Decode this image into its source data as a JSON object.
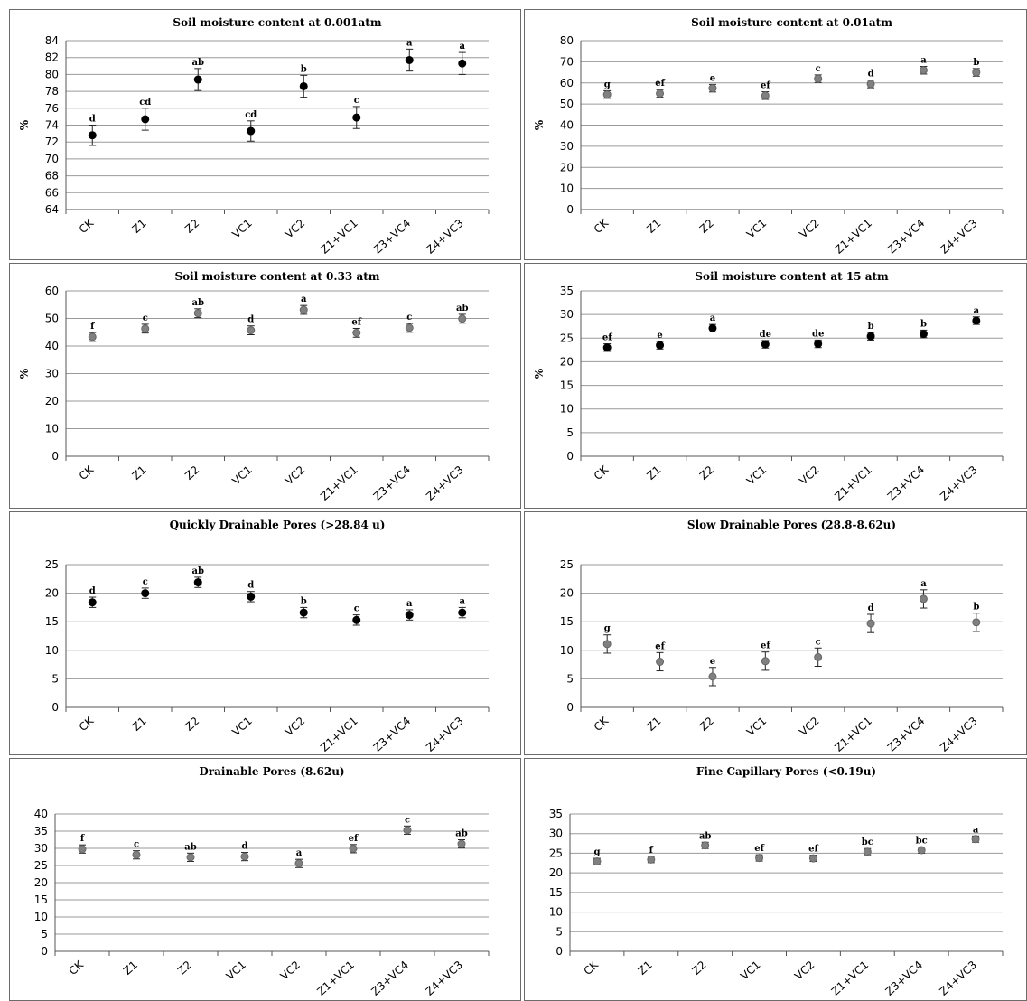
{
  "chart_data": [
    {
      "type": "scatter",
      "title": "Soil moisture content at 0.001atm",
      "ylabel": "%",
      "categories": [
        "CK",
        "Z1",
        "Z2",
        "VC1",
        "VC2",
        "Z1+VC1",
        "Z3+VC4",
        "Z4+VC3"
      ],
      "values": [
        72.8,
        74.7,
        79.4,
        73.3,
        78.6,
        74.9,
        81.7,
        81.3
      ],
      "errors": [
        1.2,
        1.3,
        1.3,
        1.2,
        1.3,
        1.3,
        1.3,
        1.3
      ],
      "letters": [
        "d",
        "cd",
        "ab",
        "cd",
        "b",
        "c",
        "a",
        "a"
      ],
      "ylim": [
        64,
        84
      ],
      "ystep": 2,
      "grid": true,
      "marker_color": "#000000"
    },
    {
      "type": "scatter",
      "title": "Soil moisture content at 0.01atm",
      "ylabel": "%",
      "categories": [
        "CK",
        "Z1",
        "Z2",
        "VC1",
        "VC2",
        "Z1+VC1",
        "Z3+VC4",
        "Z4+VC3"
      ],
      "values": [
        54.5,
        55,
        57.5,
        54,
        62,
        59.5,
        66,
        65
      ],
      "errors": [
        1.8,
        1.8,
        1.8,
        1.8,
        1.8,
        1.8,
        1.8,
        1.8
      ],
      "letters": [
        "g",
        "ef",
        "e",
        "ef",
        "c",
        "d",
        "a",
        "b"
      ],
      "ylim": [
        0,
        80
      ],
      "ystep": 10,
      "grid": true,
      "marker_color": "#808080"
    },
    {
      "type": "scatter",
      "title": "Soil moisture content at 0.33 atm",
      "ylabel": "%",
      "categories": [
        "CK",
        "Z1",
        "Z2",
        "VC1",
        "VC2",
        "Z1+VC1",
        "Z3+VC4",
        "Z4+VC3"
      ],
      "values": [
        43.3,
        46.3,
        51.9,
        45.7,
        53.1,
        44.8,
        46.6,
        49.9
      ],
      "errors": [
        1.6,
        1.6,
        1.6,
        1.6,
        1.6,
        1.6,
        1.6,
        1.6
      ],
      "letters": [
        "f",
        "c",
        "ab",
        "d",
        "a",
        "ef",
        "c",
        "ab"
      ],
      "ylim": [
        0,
        60
      ],
      "ystep": 10,
      "grid": true,
      "marker_color": "#808080"
    },
    {
      "type": "scatter",
      "title": "Soil moisture content at 15 atm",
      "ylabel": "%",
      "categories": [
        "CK",
        "Z1",
        "Z2",
        "VC1",
        "VC2",
        "Z1+VC1",
        "Z3+VC4",
        "Z4+VC3"
      ],
      "values": [
        23,
        23.5,
        27.1,
        23.7,
        23.8,
        25.4,
        25.9,
        28.7
      ],
      "errors": [
        0.8,
        0.8,
        0.8,
        0.8,
        0.8,
        0.8,
        0.8,
        0.8
      ],
      "letters": [
        "ef",
        "e",
        "a",
        "de",
        "de",
        "b",
        "b",
        "a"
      ],
      "ylim": [
        0,
        35
      ],
      "ystep": 5,
      "grid": true,
      "marker_color": "#000000"
    },
    {
      "type": "scatter",
      "title": "Quickly Drainable Pores (>28.84 u)",
      "ylabel": "",
      "categories": [
        "CK",
        "Z1",
        "Z2",
        "VC1",
        "VC2",
        "Z1+VC1",
        "Z3+VC4",
        "Z4+VC3"
      ],
      "values": [
        18.4,
        20,
        21.9,
        19.4,
        16.6,
        15.3,
        16.2,
        16.6
      ],
      "errors": [
        0.9,
        0.9,
        0.9,
        0.9,
        0.9,
        0.9,
        0.9,
        0.9
      ],
      "letters": [
        "d",
        "c",
        "ab",
        "d",
        "b",
        "c",
        "a",
        "a"
      ],
      "ylim": [
        0,
        25
      ],
      "ystep": 5,
      "grid": true,
      "marker_color": "#000000"
    },
    {
      "type": "scatter",
      "title": "Slow Drainable Pores (28.8-8.62u)",
      "ylabel": "",
      "categories": [
        "CK",
        "Z1",
        "Z2",
        "VC1",
        "VC2",
        "Z1+VC1",
        "Z3+VC4",
        "Z4+VC3"
      ],
      "values": [
        11.1,
        8,
        5.4,
        8.1,
        8.8,
        14.7,
        19,
        14.9
      ],
      "errors": [
        1.6,
        1.6,
        1.6,
        1.6,
        1.6,
        1.6,
        1.6,
        1.6
      ],
      "letters": [
        "g",
        "ef",
        "e",
        "ef",
        "c",
        "d",
        "a",
        "b"
      ],
      "ylim": [
        0,
        25
      ],
      "ystep": 5,
      "grid": true,
      "marker_color": "#808080"
    },
    {
      "type": "scatter",
      "title": "Drainable Pores (8.62u)",
      "ylabel": "",
      "categories": [
        "CK",
        "Z1",
        "Z2",
        "VC1",
        "VC2",
        "Z1+VC1",
        "Z3+VC4",
        "Z4+VC3"
      ],
      "values": [
        29.8,
        28.1,
        27.4,
        27.6,
        25.6,
        29.9,
        35.3,
        31.3
      ],
      "errors": [
        1.2,
        1.2,
        1.2,
        1.2,
        1.2,
        1.2,
        1.2,
        1.2
      ],
      "letters": [
        "f",
        "c",
        "ab",
        "d",
        "a",
        "ef",
        "c",
        "ab"
      ],
      "ylim": [
        0,
        40
      ],
      "ystep": 5,
      "grid": true,
      "marker_color": "#808080"
    },
    {
      "type": "scatter",
      "title": "Fine Capillary Pores (<0.19u)",
      "ylabel": "",
      "categories": [
        "CK",
        "Z1",
        "Z2",
        "VC1",
        "VC2",
        "Z1+VC1",
        "Z3+VC4",
        "Z4+VC3"
      ],
      "values": [
        22.9,
        23.4,
        27,
        23.8,
        23.7,
        25.4,
        25.8,
        28.6
      ],
      "errors": [
        0.8,
        0.8,
        0.8,
        0.8,
        0.8,
        0.8,
        0.8,
        0.8
      ],
      "letters": [
        "g",
        "f",
        "ab",
        "ef",
        "ef",
        "bc",
        "bc",
        "a"
      ],
      "ylim": [
        0,
        35
      ],
      "ystep": 5,
      "grid": true,
      "marker_color": "#808080"
    }
  ]
}
